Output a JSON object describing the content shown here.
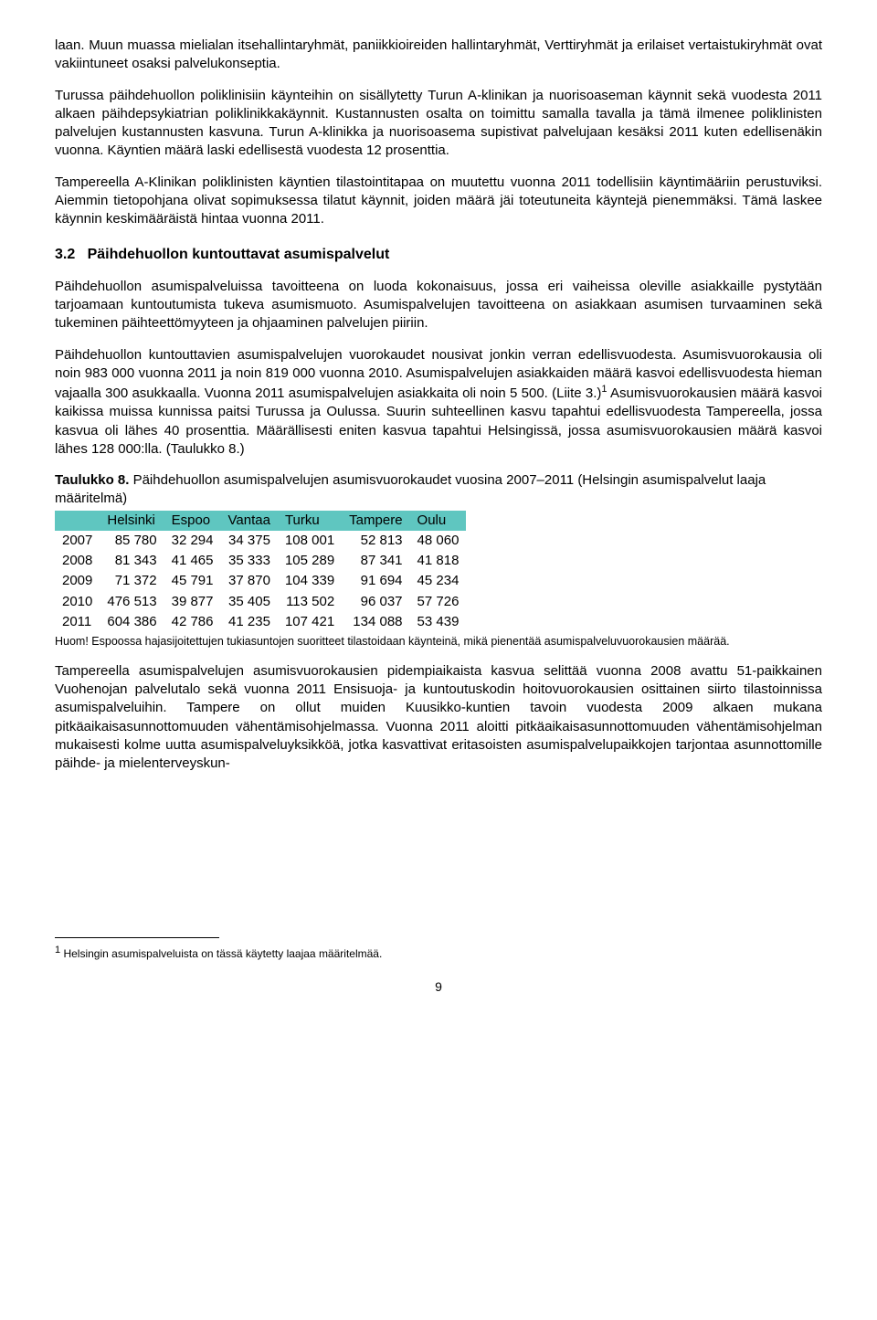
{
  "paragraphs": {
    "p1": "laan. Muun muassa mielialan itsehallintaryhmät, paniikkioireiden hallintaryhmät, Verttiryhmät ja erilaiset vertaistukiryhmät ovat vakiintuneet osaksi palvelukonseptia.",
    "p2": "Turussa päihdehuollon poliklinisiin käynteihin on sisällytetty Turun A-klinikan ja nuorisoaseman käynnit sekä vuodesta 2011 alkaen päihdepsykiatrian poliklinikkakäynnit. Kustannusten osalta on toimittu samalla tavalla ja tämä ilmenee poliklinisten palvelujen kustannusten kasvuna. Turun A-klinikka ja nuorisoasema supistivat palvelujaan kesäksi 2011 kuten edellisenäkin vuonna. Käyntien määrä laski edellisestä vuodesta 12 prosenttia.",
    "p3": "Tampereella A-Klinikan poliklinisten käyntien tilastointitapaa on muutettu vuonna 2011 todellisiin käyntimääriin perustuviksi. Aiemmin tietopohjana olivat sopimuksessa tilatut käynnit, joiden määrä jäi toteutuneita käyntejä pienemmäksi. Tämä laskee käynnin keskimääräistä hintaa vuonna 2011.",
    "heading_num": "3.2",
    "heading_txt": "Päihdehuollon kuntouttavat asumispalvelut",
    "p4": "Päihdehuollon asumispalveluissa tavoitteena on luoda kokonaisuus, jossa eri vaiheissa oleville asiakkaille pystytään tarjoamaan kuntoutumista tukeva asumismuoto. Asumispalvelujen tavoitteena on asiakkaan asumisen turvaaminen sekä tukeminen päihteettömyyteen ja ohjaaminen palvelujen piiriin.",
    "p5a": "Päihdehuollon kuntouttavien asumispalvelujen vuorokaudet nousivat jonkin verran edellisvuodesta. Asumisvuorokausia oli noin 983 000 vuonna 2011 ja noin 819 000 vuonna 2010. Asumispalvelujen asiakkaiden määrä kasvoi edellisvuodesta hieman vajaalla 300 asukkaalla. Vuonna 2011 asumispalvelujen asiakkaita oli noin 5 500. (Liite 3.)",
    "p5b": " Asumisvuorokausien määrä kasvoi kaikissa muissa kunnissa paitsi Turussa ja Oulussa. Suurin suhteellinen kasvu tapahtui edellisvuodesta Tampereella, jossa kasvua oli lähes 40 prosenttia. Määrällisesti eniten kasvua tapahtui Helsingissä, jossa asumisvuorokausien määrä kasvoi lähes 128 000:lla. (Taulukko 8.)",
    "table_caption_b": "Taulukko 8.",
    "table_caption_rest": " Päihdehuollon asumispalvelujen asumisvuorokaudet vuosina 2007–2011 (Helsingin asumispalvelut laaja määritelmä)",
    "table_footnote": "Huom! Espoossa hajasijoitettujen tukiasuntojen suoritteet tilastoidaan käynteinä, mikä pienentää asumispalveluvuorokausien määrää.",
    "p6": "Tampereella asumispalvelujen asumisvuorokausien pidempiaikaista kasvua selittää vuonna 2008 avattu 51-paikkainen Vuohenojan palvelutalo sekä vuonna 2011 Ensisuoja- ja kuntoutuskodin hoitovuorokausien osittainen siirto tilastoinnissa asumispalveluihin. Tampere on ollut muiden Kuusikko-kuntien tavoin vuodesta 2009 alkaen mukana pitkäaikaisasunnottomuuden vähentämisohjelmassa. Vuonna 2011 aloitti pitkäaikaisasunnottomuuden vähentämisohjelman mukaisesti kolme uutta asumispalveluyksikköä, jotka kasvattivat eritasoisten asumispalvelupaikkojen tarjontaa asunnottomille päihde- ja mielenterveyskun-",
    "footnote_marker": "1",
    "footnote_text": " Helsingin asumispalveluista on tässä käytetty laajaa määritelmää.",
    "page_number": "9"
  },
  "table": {
    "header_bg": "#5fc6c0",
    "columns": [
      "Helsinki",
      "Espoo",
      "Vantaa",
      "Turku",
      "Tampere",
      "Oulu"
    ],
    "rows": [
      {
        "year": "2007",
        "cells": [
          "85 780",
          "32 294",
          "34 375",
          "108 001",
          "52 813",
          "48 060"
        ]
      },
      {
        "year": "2008",
        "cells": [
          "81 343",
          "41 465",
          "35 333",
          "105 289",
          "87 341",
          "41 818"
        ]
      },
      {
        "year": "2009",
        "cells": [
          "71 372",
          "45 791",
          "37 870",
          "104 339",
          "91 694",
          "45 234"
        ]
      },
      {
        "year": "2010",
        "cells": [
          "476 513",
          "39 877",
          "35 405",
          "113 502",
          "96 037",
          "57 726"
        ]
      },
      {
        "year": "2011",
        "cells": [
          "604 386",
          "42 786",
          "41 235",
          "107 421",
          "134 088",
          "53 439"
        ]
      }
    ]
  }
}
